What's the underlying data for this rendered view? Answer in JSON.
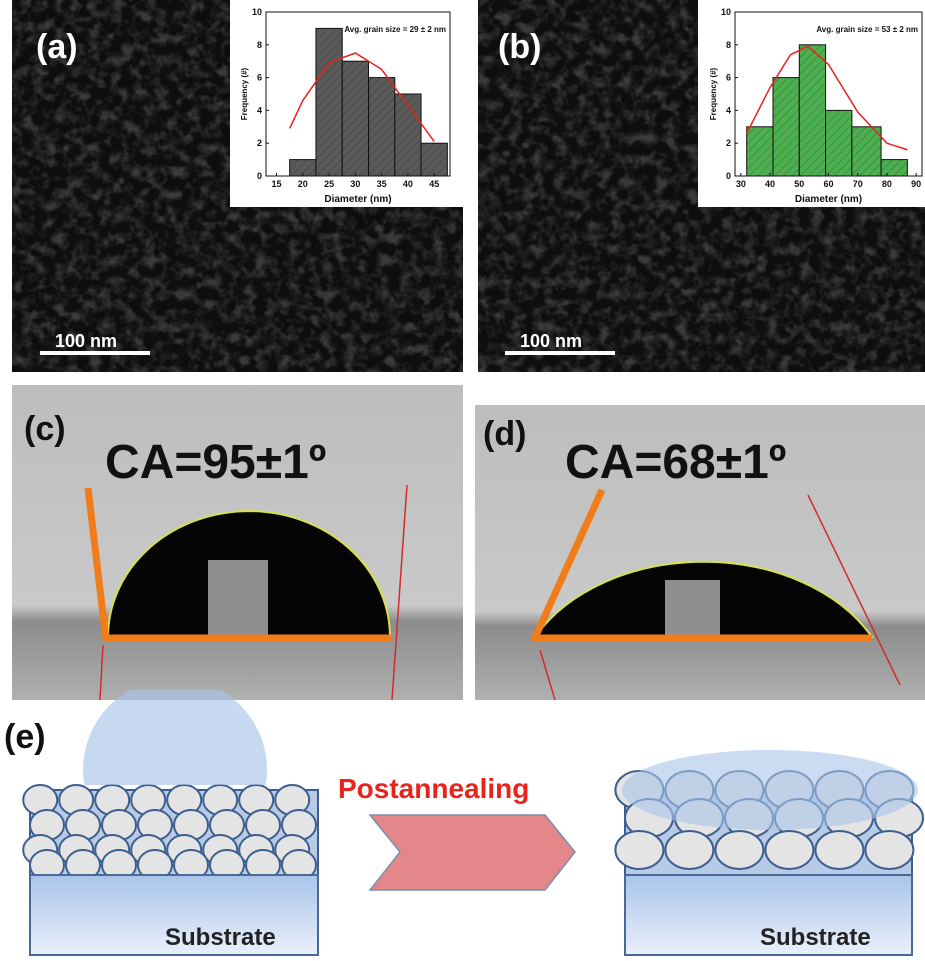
{
  "labels": {
    "a": "(a)",
    "b": "(b)",
    "c": "(c)",
    "d": "(d)",
    "e": "(e)"
  },
  "scale_bars": [
    "100 nm",
    "100 nm"
  ],
  "contact_angles": [
    "CA=95±1º",
    "CA=68±1º"
  ],
  "process": "Postannealing",
  "substrates": [
    "Substrate",
    "Substrate"
  ],
  "chart_data": [
    {
      "type": "histogram",
      "annotation": "Avg. grain size = 29 ± 2 nm",
      "xlabel": "Diameter (nm)",
      "ylabel": "Frequency (#)",
      "bins": [
        17.5,
        22.5,
        27.5,
        32.5,
        37.5,
        42.5,
        47.5
      ],
      "values": [
        1,
        9,
        7,
        6,
        5,
        2
      ],
      "color": "#5a5a5a",
      "xlim": [
        13,
        48
      ],
      "ylim": [
        0,
        10
      ],
      "xticks": [
        15,
        20,
        25,
        30,
        35,
        40,
        45
      ],
      "yticks": [
        0,
        2,
        4,
        6,
        8,
        10
      ],
      "fit": {
        "x": [
          17.5,
          20,
          25,
          30,
          35,
          40,
          45
        ],
        "values": [
          2.9,
          4.6,
          6.9,
          7.5,
          6.5,
          4.3,
          2.1
        ],
        "color": "#e8231c"
      }
    },
    {
      "type": "histogram",
      "annotation": "Avg. grain size = 53 ± 2 nm",
      "xlabel": "Diameter (nm)",
      "ylabel": "Frequency (#)",
      "bins": [
        32,
        41,
        50,
        59,
        68,
        78,
        87
      ],
      "values": [
        3,
        6,
        8,
        4,
        3,
        1
      ],
      "color": "#4caf50",
      "xlim": [
        28,
        92
      ],
      "ylim": [
        0,
        10
      ],
      "xticks": [
        30,
        40,
        50,
        60,
        70,
        80,
        90
      ],
      "yticks": [
        0,
        2,
        4,
        6,
        8,
        10
      ],
      "fit": {
        "x": [
          32,
          40,
          47,
          53,
          60,
          70,
          80,
          87
        ],
        "values": [
          2.6,
          5.4,
          7.4,
          7.9,
          6.8,
          3.9,
          2.0,
          1.6
        ],
        "color": "#e8231c"
      }
    }
  ]
}
